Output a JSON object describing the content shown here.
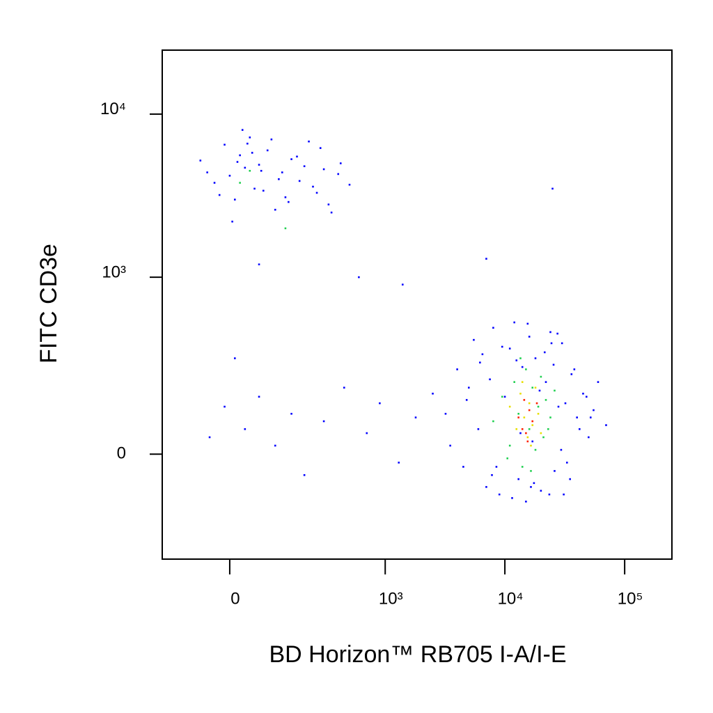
{
  "chart_data": {
    "type": "scatter",
    "xlabel": "BD Horizon™ RB705 I-A/I-E",
    "ylabel": "FITC CD3e",
    "xscale": "biexponential",
    "yscale": "biexponential",
    "xlim": [
      -171,
      248000
    ],
    "ylim": [
      -347,
      24600
    ],
    "xticks": [
      0,
      {
        "value": 1000,
        "label": "10³"
      },
      {
        "value": 10000,
        "label": "10⁴"
      },
      {
        "value": 100000,
        "label": "10⁵"
      }
    ],
    "yticks": [
      0,
      {
        "value": 1000,
        "label": "10³"
      },
      {
        "value": 10000,
        "label": "10⁴"
      }
    ],
    "series": [
      {
        "color": "#0000ff",
        "x": [
          -60,
          -30,
          -10,
          0,
          10,
          20,
          30,
          40,
          50,
          60,
          80,
          100,
          120,
          150,
          180,
          220,
          260,
          300,
          350,
          420,
          500,
          -45,
          5,
          25,
          45,
          70,
          90,
          110,
          140,
          170,
          200,
          240,
          280,
          330,
          400,
          -20,
          15,
          35,
          65,
          130,
          -40,
          -10,
          10,
          30,
          60,
          100,
          150,
          200,
          300,
          450,
          700,
          900,
          1300,
          1800,
          2500,
          600,
          7000,
          25000,
          60,
          1400,
          3200,
          4000,
          4500,
          5000,
          5500,
          6000,
          6500,
          7000,
          7500,
          8000,
          9000,
          10000,
          11000,
          12000,
          13000,
          14000,
          15000,
          16000,
          17000,
          18000,
          20000,
          22000,
          24000,
          26000,
          28000,
          30000,
          33000,
          36000,
          40000,
          45000,
          50000,
          55000,
          60000,
          70000,
          3500,
          4800,
          6200,
          7800,
          9500,
          11500,
          13500,
          15500,
          17500,
          19500,
          21500,
          23500,
          25500,
          27500,
          29500,
          32000,
          35000,
          38000,
          42000,
          48000,
          8500,
          12500,
          16500,
          24500,
          31000,
          52000
        ],
        "values": [
          5200,
          3800,
          6500,
          4200,
          3000,
          5600,
          4700,
          7200,
          3500,
          4900,
          6000,
          2600,
          4400,
          5300,
          3900,
          6800,
          3300,
          4600,
          2500,
          5000,
          3700,
          4400,
          2200,
          8000,
          5800,
          3400,
          7000,
          4000,
          2900,
          5500,
          4800,
          3600,
          6200,
          2800,
          4300,
          3200,
          5100,
          6600,
          4500,
          3100,
          40,
          120,
          300,
          60,
          150,
          20,
          100,
          -50,
          80,
          180,
          50,
          130,
          -20,
          90,
          160,
          1000,
          1300,
          3500,
          1200,
          900,
          100,
          250,
          -30,
          180,
          400,
          60,
          320,
          -80,
          210,
          480,
          -100,
          150,
          350,
          520,
          -60,
          260,
          -120,
          420,
          30,
          300,
          -90,
          200,
          450,
          -40,
          120,
          380,
          -20,
          230,
          90,
          160,
          40,
          110,
          200,
          70,
          20,
          140,
          280,
          -50,
          360,
          -110,
          50,
          510,
          -70,
          170,
          330,
          -100,
          270,
          440,
          10,
          130,
          -60,
          250,
          60,
          150,
          -30,
          290,
          -80,
          380,
          -100,
          90
        ]
      },
      {
        "color": "#20d050",
        "x": [
          8000,
          9500,
          11000,
          12000,
          13000,
          14000,
          15000,
          16000,
          17000,
          18000,
          19000,
          20000,
          21000,
          22000,
          24000,
          26000,
          10500,
          13500,
          16500,
          23000,
          40,
          20,
          130
        ],
        "values": [
          80,
          150,
          20,
          200,
          100,
          -30,
          250,
          60,
          180,
          10,
          120,
          220,
          40,
          140,
          90,
          170,
          -10,
          300,
          -40,
          60,
          4500,
          3800,
          2000
        ]
      },
      {
        "color": "#e8e000",
        "x": [
          11000,
          12500,
          13500,
          14500,
          15500,
          16000,
          17000,
          18000,
          19000,
          20000,
          14000,
          16500
        ],
        "values": [
          120,
          60,
          160,
          90,
          40,
          130,
          70,
          180,
          100,
          50,
          200,
          20
        ]
      },
      {
        "color": "#ff2000",
        "x": [
          13000,
          14500,
          15000,
          16000,
          17000,
          18500,
          15500,
          14000
        ],
        "values": [
          90,
          140,
          50,
          110,
          80,
          130,
          30,
          60
        ]
      }
    ]
  }
}
